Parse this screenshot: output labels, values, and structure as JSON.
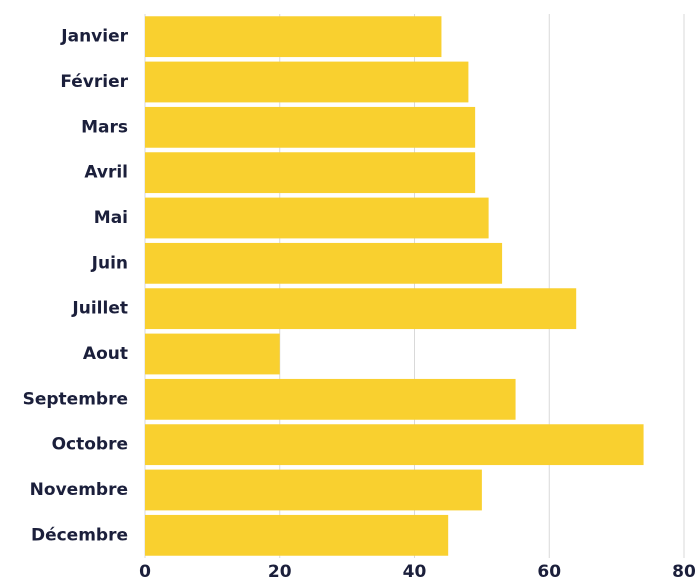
{
  "chart_data": {
    "type": "bar",
    "orientation": "horizontal",
    "categories": [
      "Janvier",
      "Février",
      "Mars",
      "Avril",
      "Mai",
      "Juin",
      "Juillet",
      "Aout",
      "Septembre",
      "Octobre",
      "Novembre",
      "Décembre"
    ],
    "values": [
      44,
      48,
      49,
      49,
      51,
      53,
      64,
      20,
      55,
      74,
      50,
      45
    ],
    "color": "#f9d02f",
    "xlim": [
      0,
      80
    ],
    "xticks": [
      0,
      20,
      40,
      60,
      80
    ],
    "grid": true
  }
}
